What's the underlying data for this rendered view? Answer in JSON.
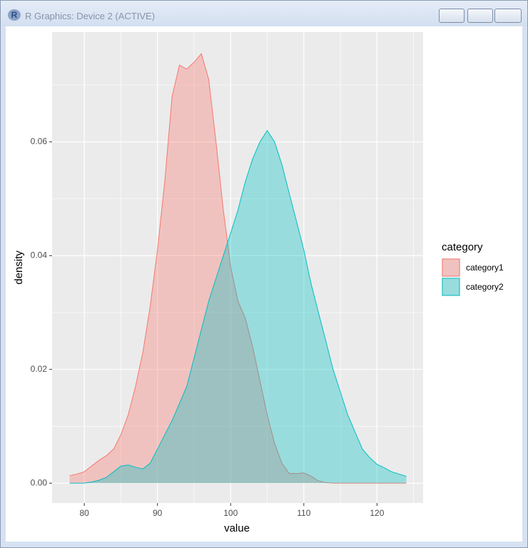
{
  "window": {
    "title": "R Graphics: Device 2 (ACTIVE)"
  },
  "chart_data": {
    "type": "density",
    "x_label": "value",
    "y_label": "density",
    "legend_title": "category",
    "x": [
      78,
      79,
      80,
      81,
      82,
      83,
      84,
      85,
      86,
      87,
      88,
      89,
      90,
      91,
      92,
      93,
      94,
      95,
      96,
      97,
      98,
      99,
      100,
      101,
      102,
      103,
      104,
      105,
      106,
      107,
      108,
      109,
      110,
      111,
      112,
      113,
      114,
      115,
      116,
      117,
      118,
      119,
      120,
      121,
      122,
      123,
      124
    ],
    "series": [
      {
        "name": "category1",
        "color": "#F8766D",
        "values": [
          0.0013,
          0.0016,
          0.002,
          0.003,
          0.004,
          0.0048,
          0.006,
          0.0085,
          0.012,
          0.017,
          0.023,
          0.031,
          0.041,
          0.053,
          0.068,
          0.0735,
          0.0728,
          0.074,
          0.0755,
          0.071,
          0.06,
          0.048,
          0.038,
          0.032,
          0.029,
          0.024,
          0.018,
          0.012,
          0.007,
          0.0035,
          0.0017,
          0.0017,
          0.0018,
          0.0012,
          0.0004,
          0.0001,
          0,
          0,
          0,
          0,
          0,
          0,
          0,
          0,
          0,
          0,
          0
        ]
      },
      {
        "name": "category2",
        "color": "#00BFC4",
        "values": [
          0,
          0,
          0,
          0.0002,
          0.0005,
          0.001,
          0.002,
          0.003,
          0.0032,
          0.0028,
          0.0025,
          0.0035,
          0.006,
          0.0085,
          0.011,
          0.014,
          0.017,
          0.022,
          0.027,
          0.032,
          0.036,
          0.04,
          0.044,
          0.048,
          0.053,
          0.057,
          0.06,
          0.062,
          0.06,
          0.056,
          0.051,
          0.046,
          0.041,
          0.035,
          0.03,
          0.025,
          0.02,
          0.016,
          0.012,
          0.009,
          0.006,
          0.0045,
          0.0033,
          0.0027,
          0.002,
          0.0016,
          0.0012
        ]
      }
    ],
    "xlim": [
      75.6,
      126.3
    ],
    "ylim": [
      -0.0035,
      0.0793
    ],
    "xticks": [
      80,
      90,
      100,
      110,
      120
    ],
    "yticks": [
      {
        "value": 0,
        "label": "0.00"
      },
      {
        "value": 0.02,
        "label": "0.02"
      },
      {
        "value": 0.04,
        "label": "0.04"
      },
      {
        "value": 0.06,
        "label": "0.06"
      }
    ],
    "xminorticks": [
      75,
      85,
      95,
      105,
      115,
      125
    ],
    "yminorticks": [
      0.01,
      0.03,
      0.05,
      0.07
    ],
    "fill_opacity": 0.35,
    "grid": true
  }
}
